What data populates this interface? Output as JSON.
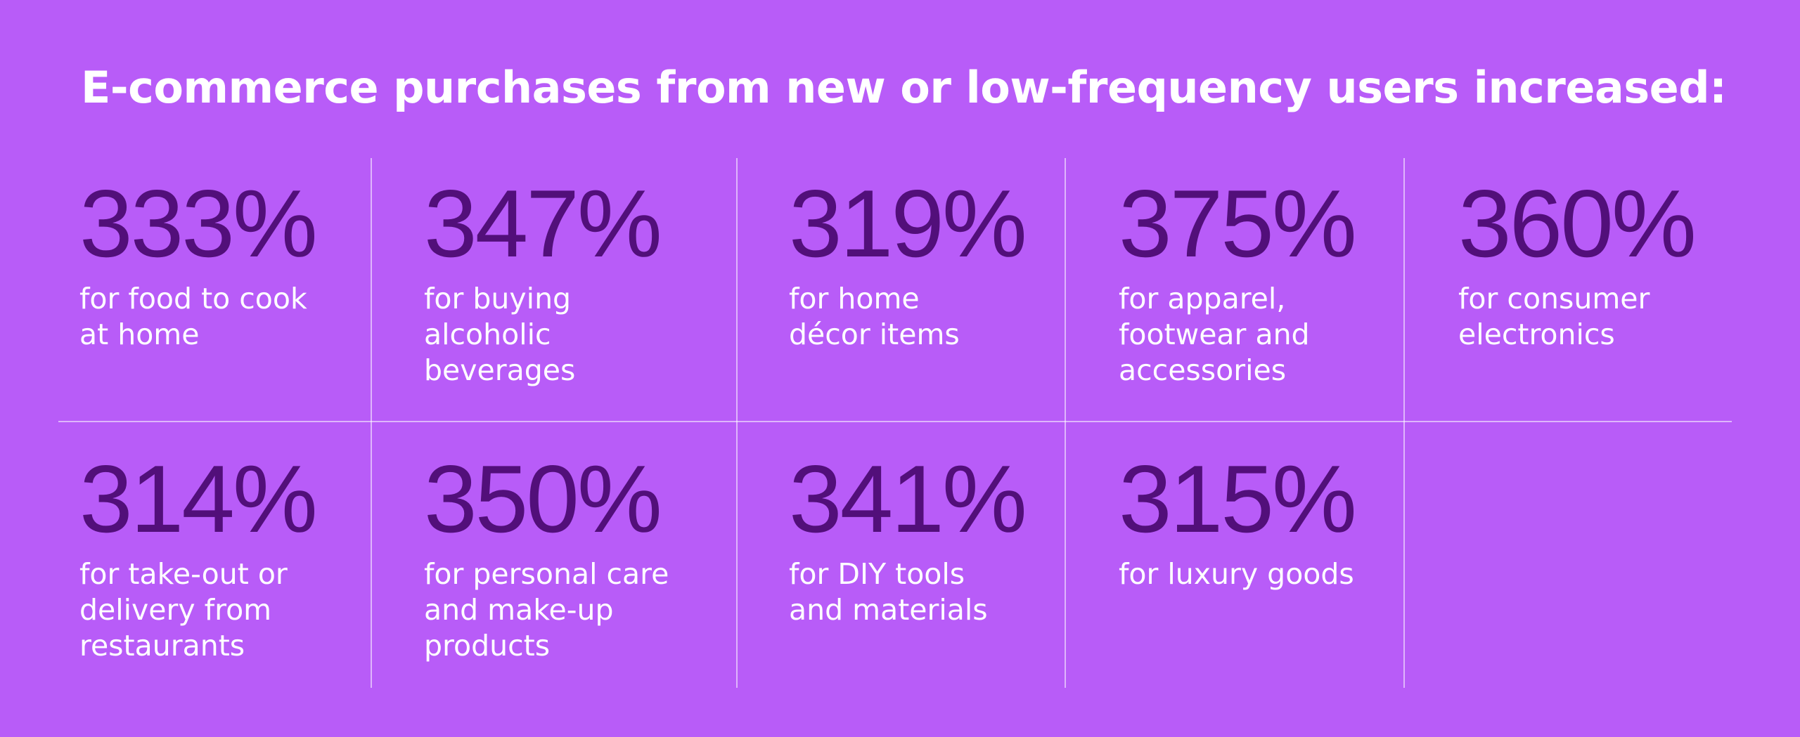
{
  "title": "E-commerce purchases from new or low-frequency users increased:",
  "colors": {
    "background": "#b85cf8",
    "value_text": "#520f7a",
    "label_text": "#ffffff",
    "divider": "#e6c8ff"
  },
  "stats": [
    {
      "value": "333%",
      "label": "for food to cook\nat home"
    },
    {
      "value": "347%",
      "label": "for buying\nalcoholic\nbeverages"
    },
    {
      "value": "319%",
      "label": "for home\ndécor items"
    },
    {
      "value": "375%",
      "label": "for apparel,\nfootwear and\naccessories"
    },
    {
      "value": "360%",
      "label": "for consumer\nelectronics"
    },
    {
      "value": "314%",
      "label": "for take-out or\ndelivery from\nrestaurants"
    },
    {
      "value": "350%",
      "label": "for personal care\nand make-up\nproducts"
    },
    {
      "value": "341%",
      "label": "for DIY tools\nand materials"
    },
    {
      "value": "315%",
      "label": "for luxury goods"
    }
  ]
}
